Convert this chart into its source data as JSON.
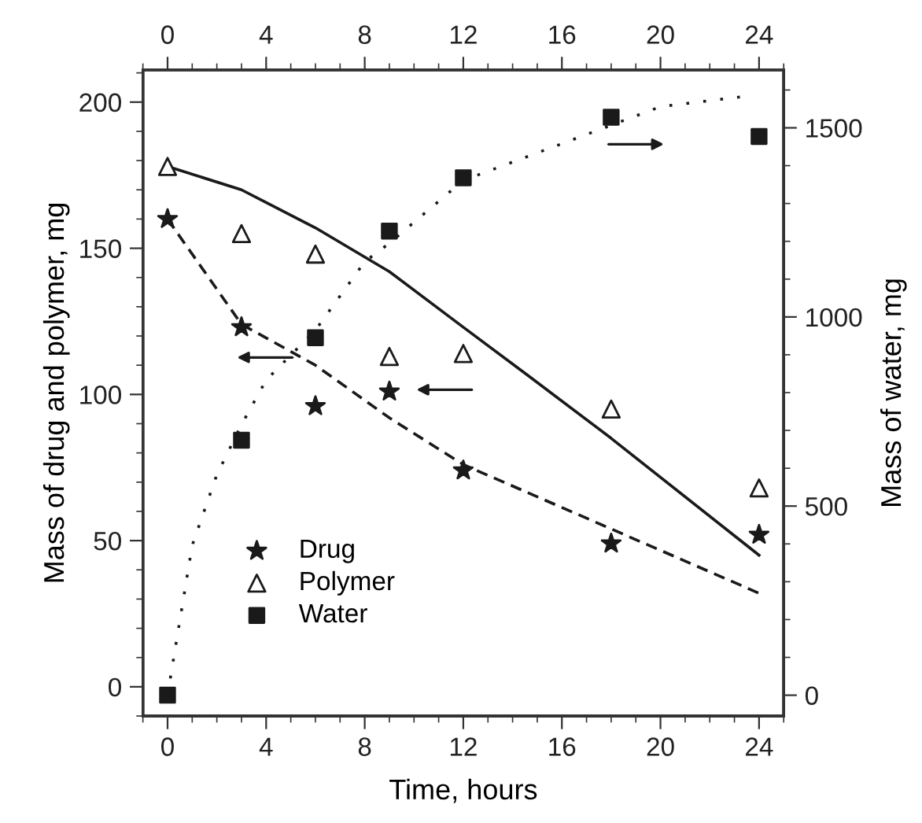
{
  "chart_data": {
    "type": "scatter",
    "xlabel": "Time, hours",
    "ylabel": "Mass of drug and polymer, mg",
    "y2label": "Mass of water, mg",
    "xlim": [
      -1,
      25
    ],
    "xticks": [
      0,
      4,
      8,
      12,
      16,
      20,
      24
    ],
    "x2lim": [
      -1,
      25
    ],
    "x2ticks": [
      0,
      4,
      8,
      12,
      16,
      20,
      24
    ],
    "ylim": [
      -10,
      211
    ],
    "yticks": [
      0,
      50,
      100,
      150,
      200
    ],
    "y2lim": [
      -55,
      1653
    ],
    "y2ticks": [
      0,
      500,
      1000,
      1500
    ],
    "grid": false,
    "legend": "bottom left",
    "series": [
      {
        "name": "Drug",
        "marker": "star",
        "color": "#1a1a1a",
        "x": [
          0,
          3,
          6,
          9,
          12,
          18,
          24
        ],
        "values": [
          160,
          123,
          96,
          101,
          74,
          49,
          52
        ]
      },
      {
        "name": "Polymer",
        "marker": "triangle",
        "color": "#1a1a1a",
        "x": [
          0,
          3,
          6,
          9,
          12,
          18,
          24
        ],
        "values": [
          178,
          155,
          148,
          113,
          114,
          95,
          68
        ]
      },
      {
        "name": "Water",
        "marker": "square",
        "color": "#1a1a1a",
        "axis": "y2",
        "x": [
          0,
          3,
          6,
          9,
          12,
          18,
          24
        ],
        "values": [
          0,
          674,
          945,
          1227,
          1368,
          1528,
          1477
        ]
      },
      {
        "type": "line",
        "line_style": "dashed",
        "color": "#1a1a1a",
        "x": [
          0,
          3,
          6,
          9,
          12,
          18,
          24
        ],
        "values": [
          160,
          124,
          110,
          92,
          76,
          54,
          32
        ]
      },
      {
        "type": "line",
        "line_style": "solid",
        "color": "#1a1a1a",
        "x": [
          0,
          3,
          6,
          9,
          12,
          14.7,
          18,
          24
        ],
        "values": [
          178,
          170,
          157,
          142,
          123,
          106,
          85,
          45
        ]
      },
      {
        "type": "line",
        "line_style": "dotted",
        "color": "#1a1a1a",
        "axis": "y2",
        "x": [
          0,
          1,
          2,
          3,
          4,
          6,
          8,
          9,
          12,
          16,
          20,
          23.4
        ],
        "values": [
          0,
          396,
          583,
          715,
          833,
          965,
          1146,
          1195,
          1361,
          1458,
          1556,
          1583
        ]
      }
    ]
  }
}
